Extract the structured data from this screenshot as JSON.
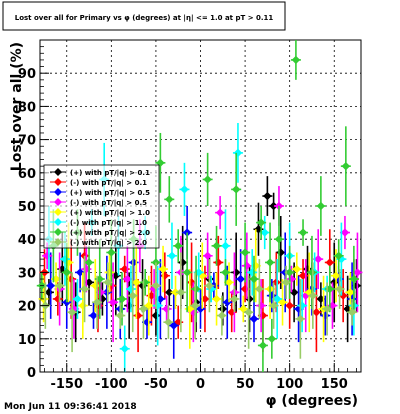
{
  "chart_data": {
    "type": "scatter",
    "title": "Lost over all for Primary vs φ (degrees) at |η| <= 1.0 at pT > 0.11",
    "xlabel": "φ (degrees)",
    "ylabel": "Lost over all (%)",
    "xlim": [
      -180,
      180
    ],
    "ylim": [
      0,
      100
    ],
    "x_ticks": [
      -150,
      -100,
      -50,
      0,
      50,
      100,
      150
    ],
    "y_ticks": [
      0,
      10,
      20,
      30,
      40,
      50,
      60,
      70,
      80,
      90
    ],
    "grid": true,
    "legend_position": "left-middle",
    "timestamp": "Mon Jun 11 09:36:41 2018",
    "series": [
      {
        "name": "(+) with pT/|q| > 0.1",
        "color": "#000000",
        "points": [
          [
            -170,
            24
          ],
          [
            -155,
            31
          ],
          [
            -140,
            18
          ],
          [
            -125,
            27
          ],
          [
            -110,
            22
          ],
          [
            -95,
            29
          ],
          [
            -80,
            20
          ],
          [
            -65,
            26
          ],
          [
            -50,
            17
          ],
          [
            -35,
            24
          ],
          [
            -20,
            33
          ],
          [
            -5,
            21
          ],
          [
            10,
            28
          ],
          [
            25,
            19
          ],
          [
            40,
            30
          ],
          [
            55,
            22
          ],
          [
            65,
            43
          ],
          [
            75,
            53
          ],
          [
            82,
            50
          ],
          [
            90,
            36
          ],
          [
            105,
            24
          ],
          [
            120,
            31
          ],
          [
            135,
            22
          ],
          [
            150,
            27
          ],
          [
            165,
            19
          ],
          [
            175,
            26
          ]
        ]
      },
      {
        "name": "(-) with pT/|q| > 0.1",
        "color": "#ff0000",
        "points": [
          [
            -175,
            30
          ],
          [
            -160,
            22
          ],
          [
            -145,
            28
          ],
          [
            -130,
            35
          ],
          [
            -115,
            20
          ],
          [
            -100,
            26
          ],
          [
            -85,
            31
          ],
          [
            -70,
            17
          ],
          [
            -55,
            23
          ],
          [
            -40,
            29
          ],
          [
            -25,
            15
          ],
          [
            -10,
            27
          ],
          [
            5,
            22
          ],
          [
            20,
            33
          ],
          [
            35,
            18
          ],
          [
            50,
            25
          ],
          [
            70,
            17
          ],
          [
            85,
            27
          ],
          [
            100,
            20
          ],
          [
            115,
            29
          ],
          [
            130,
            18
          ],
          [
            145,
            33
          ],
          [
            160,
            23
          ],
          [
            172,
            28
          ]
        ]
      },
      {
        "name": "(+) with pT/|q| > 0.5",
        "color": "#0000ff",
        "points": [
          [
            -168,
            26
          ],
          [
            -150,
            21
          ],
          [
            -135,
            30
          ],
          [
            -120,
            17
          ],
          [
            -105,
            24
          ],
          [
            -90,
            19
          ],
          [
            -75,
            33
          ],
          [
            -60,
            15
          ],
          [
            -45,
            22
          ],
          [
            -30,
            14
          ],
          [
            -15,
            42
          ],
          [
            0,
            19
          ],
          [
            15,
            26
          ],
          [
            30,
            21
          ],
          [
            45,
            28
          ],
          [
            60,
            16
          ],
          [
            80,
            23
          ],
          [
            95,
            30
          ],
          [
            110,
            19
          ],
          [
            125,
            25
          ],
          [
            140,
            17
          ],
          [
            155,
            28
          ],
          [
            170,
            22
          ]
        ]
      },
      {
        "name": "(-) with pT/|q| > 0.5",
        "color": "#ff00ff",
        "points": [
          [
            -172,
            35
          ],
          [
            -158,
            25
          ],
          [
            -142,
            19
          ],
          [
            -128,
            31
          ],
          [
            -112,
            24
          ],
          [
            -98,
            21
          ],
          [
            -82,
            28
          ],
          [
            -68,
            38
          ],
          [
            -52,
            25
          ],
          [
            -38,
            19
          ],
          [
            -22,
            30
          ],
          [
            -8,
            18
          ],
          [
            8,
            35
          ],
          [
            22,
            48
          ],
          [
            38,
            24
          ],
          [
            52,
            32
          ],
          [
            68,
            20
          ],
          [
            88,
            50
          ],
          [
            102,
            28
          ],
          [
            118,
            23
          ],
          [
            132,
            34
          ],
          [
            148,
            20
          ],
          [
            162,
            42
          ],
          [
            176,
            30
          ]
        ]
      },
      {
        "name": "(+) with pT/|q| > 1.0",
        "color": "#ffff00",
        "points": [
          [
            -176,
            22
          ],
          [
            -162,
            28
          ],
          [
            -148,
            33
          ],
          [
            -132,
            20
          ],
          [
            -118,
            26
          ],
          [
            -102,
            30
          ],
          [
            -88,
            22
          ],
          [
            -72,
            27
          ],
          [
            -58,
            20
          ],
          [
            -42,
            31
          ],
          [
            -28,
            24
          ],
          [
            -12,
            19
          ],
          [
            2,
            29
          ],
          [
            18,
            22
          ],
          [
            32,
            27
          ],
          [
            48,
            19
          ],
          [
            62,
            32
          ],
          [
            78,
            25
          ],
          [
            92,
            21
          ],
          [
            108,
            31
          ],
          [
            122,
            24
          ],
          [
            138,
            19
          ],
          [
            152,
            29
          ],
          [
            168,
            24
          ]
        ]
      },
      {
        "name": "(-) with pT/|q| > 1.0",
        "color": "#00ffff",
        "points": [
          [
            -170,
            40
          ],
          [
            -152,
            34
          ],
          [
            -138,
            22
          ],
          [
            -122,
            45
          ],
          [
            -108,
            58
          ],
          [
            -92,
            38
          ],
          [
            -78,
            25
          ],
          [
            -62,
            42
          ],
          [
            -48,
            20
          ],
          [
            -32,
            35
          ],
          [
            -18,
            55
          ],
          [
            -2,
            30
          ],
          [
            12,
            25
          ],
          [
            28,
            38
          ],
          [
            42,
            66
          ],
          [
            58,
            30
          ],
          [
            72,
            42
          ],
          [
            86,
            22
          ],
          [
            100,
            35
          ],
          [
            114,
            20
          ],
          [
            128,
            30
          ],
          [
            142,
            25
          ],
          [
            158,
            34
          ],
          [
            172,
            20
          ],
          [
            -85,
            7
          ]
        ]
      },
      {
        "name": "(+) with pT/|q| > 2.0",
        "color": "#33cc33",
        "points": [
          [
            -178,
            26
          ],
          [
            -165,
            38
          ],
          [
            -150,
            30
          ],
          [
            -138,
            42
          ],
          [
            -125,
            33
          ],
          [
            -113,
            28
          ],
          [
            -100,
            36
          ],
          [
            -88,
            22
          ],
          [
            -75,
            40
          ],
          [
            -62,
            27
          ],
          [
            -50,
            33
          ],
          [
            -45,
            63
          ],
          [
            -35,
            52
          ],
          [
            -25,
            38
          ],
          [
            -15,
            30
          ],
          [
            -5,
            25
          ],
          [
            8,
            58
          ],
          [
            18,
            38
          ],
          [
            28,
            30
          ],
          [
            40,
            55
          ],
          [
            50,
            36
          ],
          [
            60,
            28
          ],
          [
            68,
            45
          ],
          [
            78,
            33
          ],
          [
            88,
            40
          ],
          [
            100,
            30
          ],
          [
            107,
            94
          ],
          [
            115,
            42
          ],
          [
            125,
            30
          ],
          [
            135,
            50
          ],
          [
            145,
            25
          ],
          [
            155,
            35
          ],
          [
            163,
            62
          ],
          [
            172,
            28
          ],
          [
            70,
            8
          ],
          [
            80,
            10
          ]
        ]
      },
      {
        "name": "(-) with pT/|q| > 2.0",
        "color": "#99cc66",
        "points": [
          [
            -174,
            20
          ],
          [
            -158,
            26
          ],
          [
            -144,
            18
          ],
          [
            -130,
            25
          ],
          [
            -116,
            21
          ],
          [
            -104,
            27
          ],
          [
            -90,
            17
          ],
          [
            -76,
            23
          ],
          [
            -64,
            19
          ],
          [
            -50,
            26
          ],
          [
            -36,
            15
          ],
          [
            -22,
            24
          ],
          [
            -6,
            20
          ],
          [
            10,
            26
          ],
          [
            24,
            17
          ],
          [
            38,
            22
          ],
          [
            54,
            18
          ],
          [
            66,
            25
          ],
          [
            82,
            20
          ],
          [
            96,
            27
          ],
          [
            112,
            16
          ],
          [
            126,
            23
          ],
          [
            142,
            19
          ],
          [
            156,
            25
          ],
          [
            170,
            18
          ]
        ]
      }
    ]
  }
}
